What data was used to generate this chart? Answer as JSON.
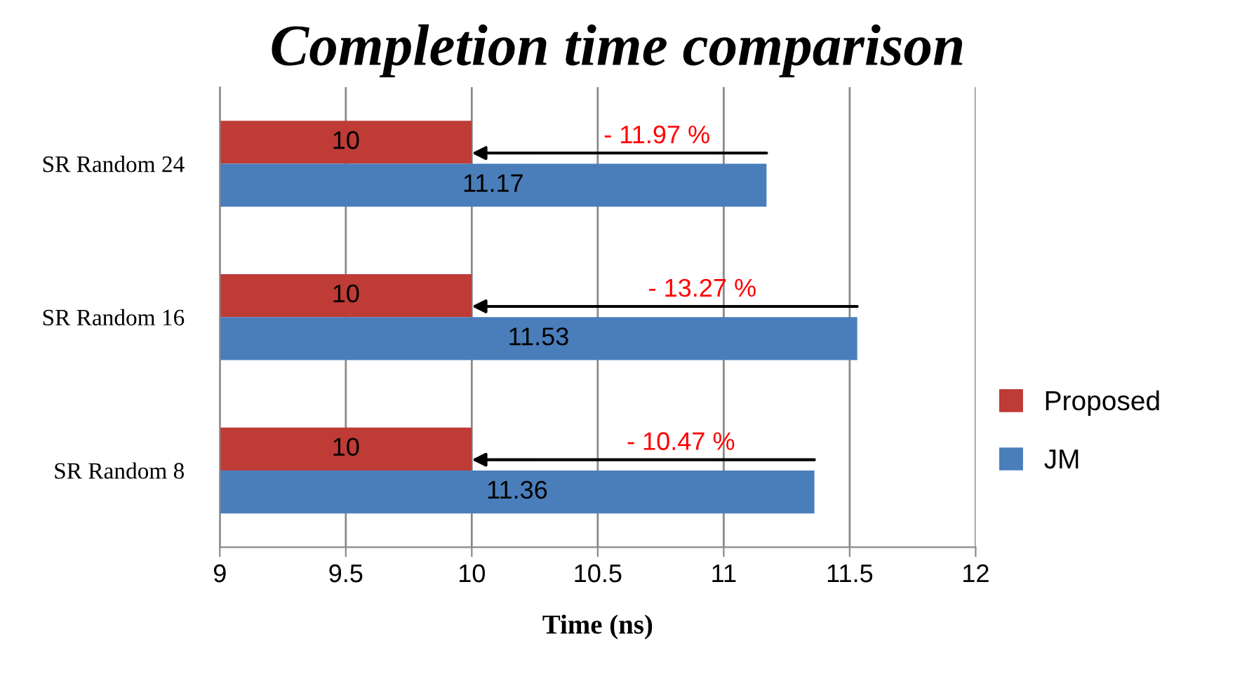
{
  "chart_data": {
    "type": "bar",
    "orientation": "horizontal",
    "title": "Completion time comparison",
    "xlabel": "Time (ns)",
    "categories": [
      "SR Random 24",
      "SR Random 16",
      "SR Random 8"
    ],
    "series": [
      {
        "name": "Proposed",
        "color": "#be3b36",
        "values": [
          10,
          10,
          10
        ]
      },
      {
        "name": "JM",
        "color": "#4a7ebb",
        "values": [
          11.17,
          11.53,
          11.36
        ]
      }
    ],
    "xlim": [
      9,
      12
    ],
    "xticks": [
      9,
      9.5,
      10,
      10.5,
      11,
      11.5,
      12
    ],
    "grid": "x",
    "legend": "right",
    "data_labels": true,
    "annotations": [
      "- 11.97 %",
      "- 13.27 %",
      "- 10.47 %"
    ]
  }
}
